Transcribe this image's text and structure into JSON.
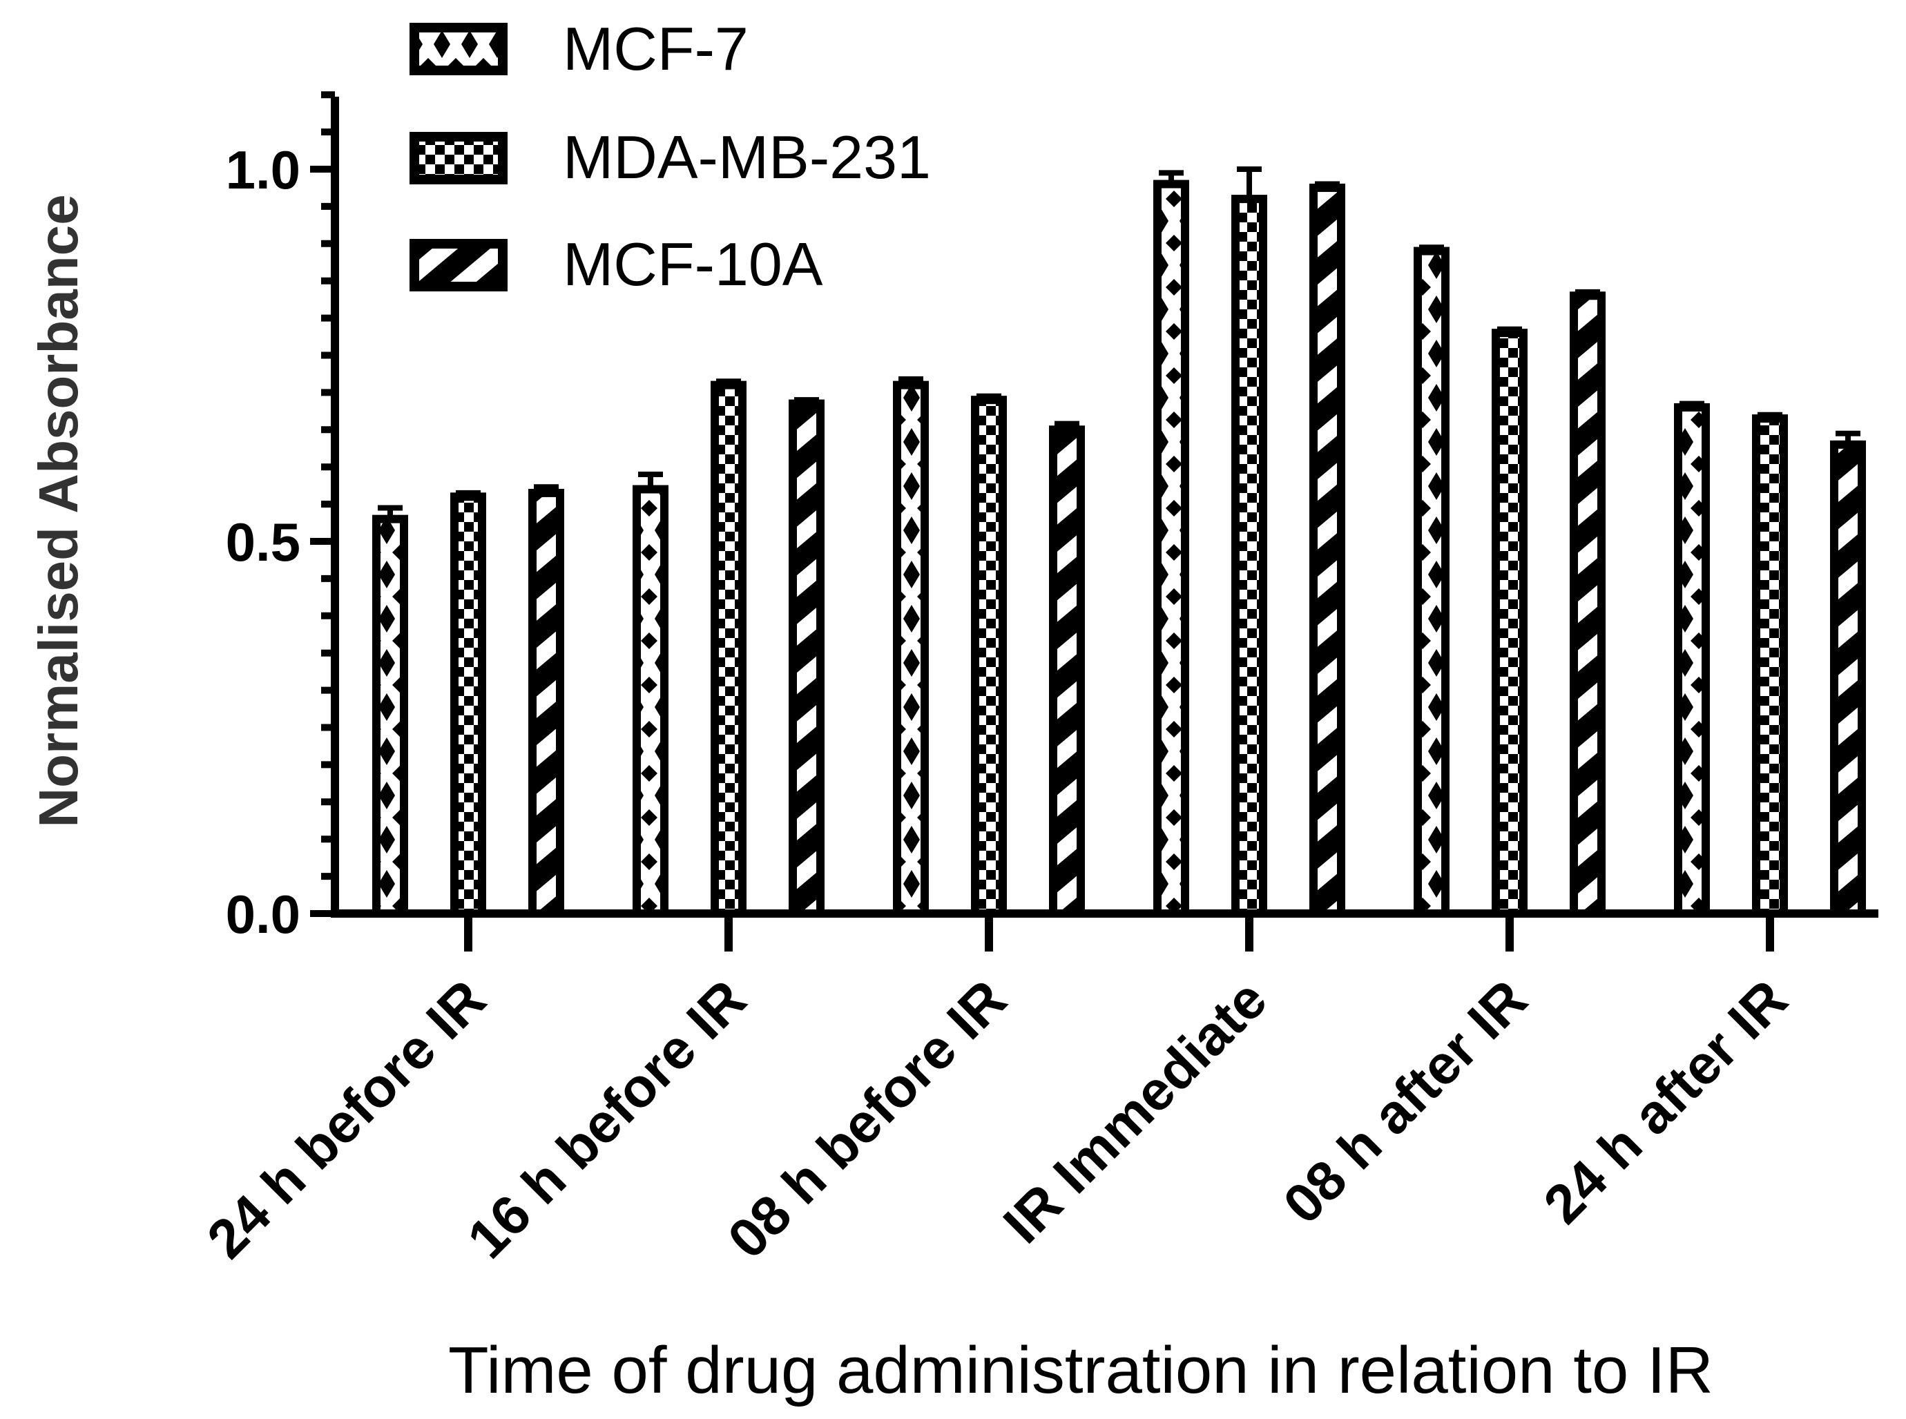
{
  "chart_data": {
    "type": "bar",
    "title": "",
    "xlabel": "Time of drug administration in relation to IR",
    "ylabel": "Normalised Absorbance",
    "ylim": [
      0,
      1.1
    ],
    "yticks": [
      "0.0",
      "0.5",
      "1.0"
    ],
    "categories": [
      "24 h before IR",
      "16 h before IR",
      "08 h before IR",
      "IR Immediate",
      "08 h after IR",
      "24 h after IR"
    ],
    "series": [
      {
        "name": "MCF-7",
        "pattern": "diamond-pattern",
        "values": [
          0.53,
          0.57,
          0.71,
          0.98,
          0.89,
          0.68
        ],
        "errors": [
          0.015,
          0.02,
          0.008,
          0.015,
          0.005,
          0.005
        ]
      },
      {
        "name": "MDA-MB-231",
        "pattern": "checker-pattern",
        "values": [
          0.56,
          0.71,
          0.69,
          0.96,
          0.78,
          0.665
        ],
        "errors": [
          0.005,
          0.005,
          0.005,
          0.04,
          0.005,
          0.005
        ]
      },
      {
        "name": "MCF-10A",
        "pattern": "stripe-pattern",
        "values": [
          0.565,
          0.685,
          0.65,
          0.975,
          0.83,
          0.63
        ],
        "errors": [
          0.008,
          0.005,
          0.008,
          0.005,
          0.005,
          0.015
        ]
      }
    ],
    "legend_position": "top-left",
    "colors": {
      "bar_stroke": "#000000",
      "bar_fill": "#ffffff",
      "axis": "#000000",
      "ylabel": "#333333"
    }
  }
}
